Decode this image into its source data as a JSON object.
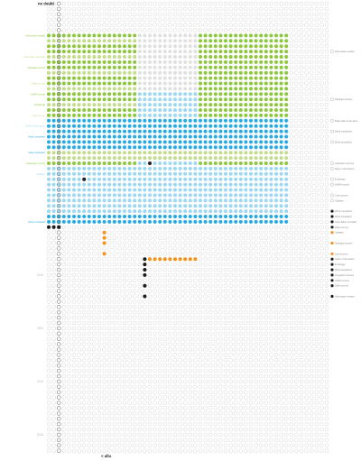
{
  "header": {
    "top_label": "no doubt",
    "bottom_label": "< ullu"
  },
  "colors": {
    "green": "#8dc63f",
    "light_green": "#c3dc8e",
    "blue": "#29abe2",
    "light_blue": "#9dd7f1",
    "grey": "#e0e0e0",
    "orange": "#f7941d",
    "black": "#1f1f1f",
    "empty_stroke": "#cccccc"
  },
  "chart_data": {
    "type": "dot-matrix",
    "columns": 56,
    "rows": 85,
    "left_labels": [
      {
        "row": 6,
        "text": "Information reward",
        "color": "green"
      },
      {
        "row": 10,
        "text": "Information overload",
        "color": "light_green"
      },
      {
        "row": 12,
        "text": "Strategic income",
        "color": "green"
      },
      {
        "row": 15,
        "text": "Daily income",
        "color": "light_green"
      },
      {
        "row": 17,
        "text": "ASAP income",
        "color": "green"
      },
      {
        "row": 19,
        "text": "Exchange",
        "color": "green"
      },
      {
        "row": 21,
        "text": "Cost income",
        "color": "light_green"
      },
      {
        "row": 23,
        "text": "News / Information",
        "color": "light_blue"
      },
      {
        "row": 25,
        "text": "Work completed",
        "color": "blue"
      },
      {
        "row": 28,
        "text": "Work scheduled",
        "color": "blue"
      },
      {
        "row": 30,
        "text": "Integration income",
        "color": "green"
      },
      {
        "row": 32,
        "text": "Updates",
        "color": "light_blue"
      },
      {
        "row": 41,
        "text": "Work completed",
        "color": "blue"
      }
    ],
    "y_labels": [
      {
        "row": 51,
        "text": "2010"
      },
      {
        "row": 61,
        "text": "2011"
      },
      {
        "row": 71,
        "text": "2012"
      },
      {
        "row": 81,
        "text": "2013"
      }
    ],
    "legend": [
      {
        "row": 9,
        "text": "Information reward",
        "color": "empty"
      },
      {
        "row": 18,
        "text": "Strategic income",
        "color": "empty"
      },
      {
        "row": 22,
        "text": "Daily tasks to be done",
        "color": "empty"
      },
      {
        "row": 24,
        "text": "Work completed",
        "color": "empty"
      },
      {
        "row": 26,
        "text": "Work scheduled",
        "color": "empty"
      },
      {
        "row": 30,
        "text": "Integration income",
        "color": "empty"
      },
      {
        "row": 31,
        "text": "News / Information",
        "color": "empty"
      },
      {
        "row": 33,
        "text": "Exchange",
        "color": "empty"
      },
      {
        "row": 34,
        "text": "ASAP income",
        "color": "empty"
      },
      {
        "row": 36,
        "text": "Cost income",
        "color": "empty"
      },
      {
        "row": 37,
        "text": "Updates",
        "color": "empty"
      },
      {
        "row": 39,
        "text": "Work completed",
        "color": "black"
      },
      {
        "row": 40,
        "text": "Work scheduled",
        "color": "black"
      },
      {
        "row": 41,
        "text": "Information overload",
        "color": "black"
      },
      {
        "row": 42,
        "text": "Daily income",
        "color": "black"
      },
      {
        "row": 43,
        "text": "Updates",
        "color": "orange"
      },
      {
        "row": 45,
        "text": "Strategic income",
        "color": "orange"
      },
      {
        "row": 47,
        "text": "Cost income",
        "color": "orange"
      },
      {
        "row": 48,
        "text": "News / Information",
        "color": "black"
      },
      {
        "row": 49,
        "text": "Exchange",
        "color": "black"
      },
      {
        "row": 50,
        "text": "Work scheduled",
        "color": "black"
      },
      {
        "row": 51,
        "text": "Integration income",
        "color": "black"
      },
      {
        "row": 52,
        "text": "ASAP income",
        "color": "black"
      },
      {
        "row": 53,
        "text": "Daily income",
        "color": "black"
      },
      {
        "row": 55,
        "text": "Information reward",
        "color": "black"
      }
    ],
    "blocks": [
      {
        "rows": [
          6,
          16
        ],
        "cols": [
          0,
          17
        ],
        "color": "green"
      },
      {
        "rows": [
          6,
          16
        ],
        "cols": [
          18,
          29
        ],
        "color": "grey"
      },
      {
        "rows": [
          6,
          16
        ],
        "cols": [
          30,
          47
        ],
        "color": "green"
      },
      {
        "rows": [
          17,
          30
        ],
        "cols": [
          0,
          17
        ],
        "color": "green"
      },
      {
        "rows": [
          17,
          30
        ],
        "cols": [
          18,
          29
        ],
        "color": "light_blue"
      },
      {
        "rows": [
          17,
          30
        ],
        "cols": [
          30,
          47
        ],
        "color": "green"
      },
      {
        "rows": [
          31,
          41
        ],
        "cols": [
          0,
          47
        ],
        "color": "light_blue"
      },
      {
        "rows": [
          22,
          27
        ],
        "cols": [
          0,
          47
        ],
        "color": "blue"
      },
      {
        "rows": [
          28,
          29
        ],
        "cols": [
          0,
          47
        ],
        "color": "light_green"
      },
      {
        "rows": [
          40,
          41
        ],
        "cols": [
          0,
          47
        ],
        "color": "blue"
      }
    ]
  }
}
